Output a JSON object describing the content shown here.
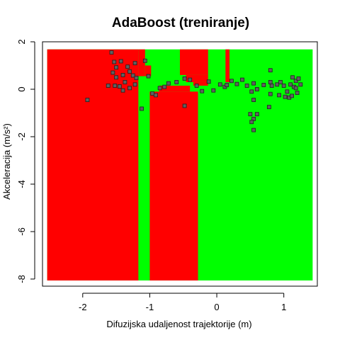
{
  "chart_data": {
    "type": "scatter",
    "title": "AdaBoost (treniranje)",
    "xlabel": "Difuzijska udaljenost trajektorije (m)",
    "ylabel": "Akceleracija (m/s²)",
    "xlim": [
      -2.6,
      1.5
    ],
    "ylim": [
      -8.3,
      2.0
    ],
    "x_ticks": [
      -2,
      -1,
      0,
      1
    ],
    "y_ticks": [
      -8,
      -6,
      -4,
      -2,
      0,
      2
    ],
    "x_tick_labels": [
      "-2",
      "-1",
      "0",
      "1"
    ],
    "y_tick_labels": [
      "-8",
      "-6",
      "-4",
      "-2",
      "0",
      "2"
    ],
    "grid": false,
    "colors": {
      "class_a": "#ff0000",
      "class_b": "#00ff00",
      "point_fill": "#606060",
      "point_edge": "#202020"
    },
    "decision_regions": [
      {
        "class": "class_b",
        "x": [
          -2.53,
          1.43
        ],
        "y": [
          -8.06,
          1.68
        ]
      },
      {
        "class": "class_a",
        "x": [
          -2.53,
          -1.17
        ],
        "y": [
          -8.06,
          1.68
        ]
      },
      {
        "class": "class_a",
        "x": [
          -1.17,
          -1.07
        ],
        "y": [
          0.55,
          1.68
        ]
      },
      {
        "class": "class_a",
        "x": [
          -1.07,
          -0.98
        ],
        "y": [
          0.55,
          1.0
        ]
      },
      {
        "class": "class_a",
        "x": [
          -1.0,
          -0.28
        ],
        "y": [
          -8.06,
          -0.1
        ]
      },
      {
        "class": "class_a",
        "x": [
          -0.86,
          -0.4
        ],
        "y": [
          -0.1,
          0.15
        ]
      },
      {
        "class": "class_a",
        "x": [
          -0.55,
          -0.13
        ],
        "y": [
          0.6,
          1.68
        ]
      },
      {
        "class": "class_a",
        "x": [
          -0.46,
          -0.13
        ],
        "y": [
          0.3,
          0.6
        ]
      },
      {
        "class": "class_a",
        "x": [
          -0.35,
          -0.13
        ],
        "y": [
          0.15,
          0.3
        ]
      },
      {
        "class": "class_a",
        "x": [
          0.13,
          0.19
        ],
        "y": [
          0.3,
          1.68
        ]
      }
    ],
    "points": [
      {
        "x": -1.57,
        "y": 1.55
      },
      {
        "x": -1.53,
        "y": 1.15
      },
      {
        "x": -1.5,
        "y": 0.92
      },
      {
        "x": -1.55,
        "y": 0.7
      },
      {
        "x": -1.43,
        "y": 1.18
      },
      {
        "x": -1.33,
        "y": 0.95
      },
      {
        "x": -1.3,
        "y": 0.75
      },
      {
        "x": -1.22,
        "y": 1.1
      },
      {
        "x": -1.4,
        "y": 0.6
      },
      {
        "x": -1.37,
        "y": 0.3
      },
      {
        "x": -1.5,
        "y": 0.5
      },
      {
        "x": -1.62,
        "y": 0.15
      },
      {
        "x": -1.52,
        "y": 0.15
      },
      {
        "x": -1.45,
        "y": 0.12
      },
      {
        "x": -1.25,
        "y": 0.58
      },
      {
        "x": -1.2,
        "y": 0.48
      },
      {
        "x": -1.3,
        "y": 0.05
      },
      {
        "x": -1.4,
        "y": -0.05
      },
      {
        "x": -1.07,
        "y": 1.2
      },
      {
        "x": -1.02,
        "y": 0.55
      },
      {
        "x": -1.22,
        "y": 0.2
      },
      {
        "x": -1.93,
        "y": -0.45
      },
      {
        "x": -1.12,
        "y": -0.82
      },
      {
        "x": -0.96,
        "y": -0.18
      },
      {
        "x": -0.91,
        "y": -0.25
      },
      {
        "x": -0.85,
        "y": 0.05
      },
      {
        "x": -0.78,
        "y": 0.1
      },
      {
        "x": -0.72,
        "y": 0.25
      },
      {
        "x": -0.6,
        "y": 0.3
      },
      {
        "x": -0.48,
        "y": 0.45
      },
      {
        "x": -0.48,
        "y": -0.7
      },
      {
        "x": -0.4,
        "y": 0.4
      },
      {
        "x": -0.3,
        "y": 0.15
      },
      {
        "x": -0.22,
        "y": -0.08
      },
      {
        "x": -0.12,
        "y": 0.32
      },
      {
        "x": -0.05,
        "y": -0.05
      },
      {
        "x": 0.05,
        "y": 0.2
      },
      {
        "x": 0.12,
        "y": 0.1
      },
      {
        "x": 0.15,
        "y": 0.18
      },
      {
        "x": 0.22,
        "y": 0.35
      },
      {
        "x": 0.3,
        "y": 0.22
      },
      {
        "x": 0.38,
        "y": 0.4
      },
      {
        "x": 0.45,
        "y": 0.15
      },
      {
        "x": 0.55,
        "y": 0.25
      },
      {
        "x": 0.6,
        "y": 0.0
      },
      {
        "x": 0.52,
        "y": -0.1
      },
      {
        "x": 0.55,
        "y": -0.45
      },
      {
        "x": 0.5,
        "y": -1.05
      },
      {
        "x": 0.55,
        "y": -1.25
      },
      {
        "x": 0.6,
        "y": -1.05
      },
      {
        "x": 0.52,
        "y": -1.38
      },
      {
        "x": 0.55,
        "y": -1.72
      },
      {
        "x": 0.8,
        "y": 0.8
      },
      {
        "x": 0.8,
        "y": 0.3
      },
      {
        "x": 0.82,
        "y": 0.15
      },
      {
        "x": 0.8,
        "y": -0.2
      },
      {
        "x": 0.78,
        "y": -0.75
      },
      {
        "x": 0.9,
        "y": 0.2
      },
      {
        "x": 0.95,
        "y": 0.3
      },
      {
        "x": 0.93,
        "y": -0.25
      },
      {
        "x": 1.0,
        "y": 0.15
      },
      {
        "x": 1.05,
        "y": -0.1
      },
      {
        "x": 1.08,
        "y": -0.35
      },
      {
        "x": 1.1,
        "y": 0.2
      },
      {
        "x": 1.13,
        "y": 0.5
      },
      {
        "x": 1.15,
        "y": 0.1
      },
      {
        "x": 1.18,
        "y": 0.35
      },
      {
        "x": 1.2,
        "y": -0.15
      },
      {
        "x": 1.22,
        "y": 0.45
      },
      {
        "x": 1.25,
        "y": 0.2
      },
      {
        "x": 1.18,
        "y": 0.05
      },
      {
        "x": 1.12,
        "y": -0.28
      },
      {
        "x": 1.02,
        "y": -0.32
      },
      {
        "x": 0.7,
        "y": 0.18
      }
    ]
  }
}
